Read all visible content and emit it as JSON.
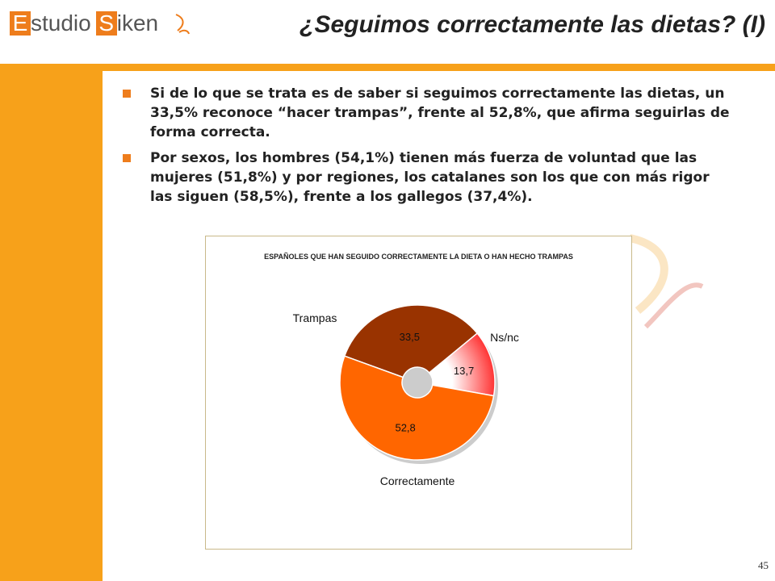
{
  "logo": {
    "letter1": "E",
    "text1": "studio",
    "letter2": "S",
    "text2": "iken"
  },
  "title": "¿Seguimos correctamente las dietas? (I)",
  "bullets": [
    "Si de lo que se trata es de saber si seguimos correctamente las dietas, un 33,5% reconoce “hacer trampas”, frente al 52,8%, que afirma seguirlas de forma correcta.",
    "Por sexos, los hombres (54,1%) tienen más fuerza de voluntad que las mujeres (51,8%) y por regiones, los catalanes son los que con más rigor las siguen (58,5%), frente a los gallegos (37,4%)."
  ],
  "chart_data": {
    "type": "pie",
    "title": "ESPAÑOLES QUE HAN SEGUIDO CORRECTAMENTE LA DIETA O HAN HECHO TRAMPAS",
    "variant": "donut",
    "slices": [
      {
        "name": "Trampas",
        "value": 33.5,
        "label": "33,5",
        "color": "#993300"
      },
      {
        "name": "Ns/nc",
        "value": 13.7,
        "label": "13,7",
        "color": "#ff6666"
      },
      {
        "name": "Correctamente",
        "value": 52.8,
        "label": "52,8",
        "color": "#ff6600"
      }
    ]
  },
  "page_number": "45",
  "colors": {
    "accent": "#f7a11a",
    "logo": "#ee7d1c"
  }
}
